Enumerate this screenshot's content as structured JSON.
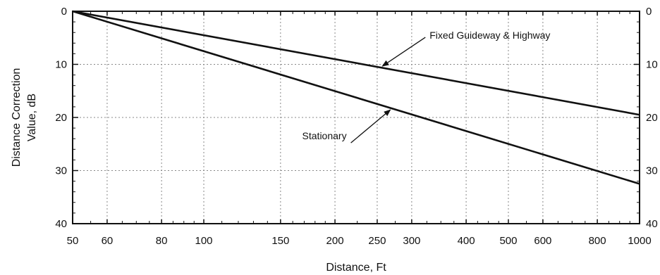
{
  "chart_data": {
    "type": "line",
    "x_scale": "log",
    "xlim": [
      50,
      1000
    ],
    "ylim": [
      0,
      40
    ],
    "y_inverted": true,
    "grid": true,
    "xlabel": "Distance, Ft",
    "ylabel_lines": [
      "Distance Correction",
      "Value, dB"
    ],
    "x_ticks": [
      50,
      60,
      80,
      100,
      150,
      200,
      250,
      300,
      400,
      500,
      600,
      800,
      1000
    ],
    "x_tick_labels": [
      "50",
      "60",
      "80",
      "100",
      "150",
      "200",
      "250",
      "300",
      "400",
      "500",
      "600",
      "800",
      "1000"
    ],
    "y_ticks": [
      0,
      10,
      20,
      30,
      40
    ],
    "y_tick_labels": [
      "0",
      "10",
      "20",
      "30",
      "40"
    ],
    "series": [
      {
        "name": "Fixed Guideway & Highway",
        "x": [
          50,
          1000
        ],
        "y": [
          0,
          19.5
        ]
      },
      {
        "name": "Stationary",
        "x": [
          50,
          1000
        ],
        "y": [
          0,
          32.5
        ]
      }
    ],
    "annotations": [
      {
        "text": "Fixed Guideway & Highway",
        "series": 0,
        "point_x": 255
      },
      {
        "text": "Stationary",
        "series": 1,
        "point_x": 270
      }
    ]
  }
}
